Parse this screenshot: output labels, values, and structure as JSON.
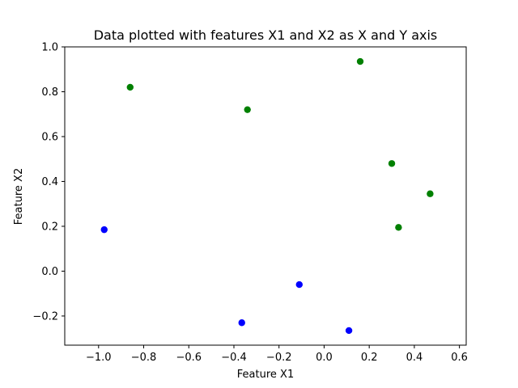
{
  "chart_data": {
    "type": "scatter",
    "title": "Data plotted with features X1 and X2 as X and Y axis",
    "xlabel": "Feature X1",
    "ylabel": "Feature X2",
    "xlim": [
      -1.15,
      0.63
    ],
    "ylim": [
      -0.33,
      1.0
    ],
    "xticks": [
      -1.0,
      -0.8,
      -0.6,
      -0.4,
      -0.2,
      0.0,
      0.2,
      0.4,
      0.6
    ],
    "xtick_labels": [
      "−1.0",
      "−0.8",
      "−0.6",
      "−0.4",
      "−0.2",
      "0.0",
      "0.2",
      "0.4",
      "0.6"
    ],
    "yticks": [
      -0.2,
      0.0,
      0.2,
      0.4,
      0.6,
      0.8,
      1.0
    ],
    "ytick_labels": [
      "−0.2",
      "0.0",
      "0.2",
      "0.4",
      "0.6",
      "0.8",
      "1.0"
    ],
    "grid": false,
    "series": [
      {
        "color": "#008000",
        "points": [
          {
            "x": -0.86,
            "y": 0.82
          },
          {
            "x": -0.34,
            "y": 0.72
          },
          {
            "x": 0.16,
            "y": 0.935
          },
          {
            "x": 0.3,
            "y": 0.48
          },
          {
            "x": 0.47,
            "y": 0.345
          },
          {
            "x": 0.33,
            "y": 0.195
          }
        ]
      },
      {
        "color": "#0000ff",
        "points": [
          {
            "x": -0.975,
            "y": 0.185
          },
          {
            "x": -0.11,
            "y": -0.06
          },
          {
            "x": -0.365,
            "y": -0.23
          },
          {
            "x": 0.11,
            "y": -0.265
          }
        ]
      }
    ]
  }
}
